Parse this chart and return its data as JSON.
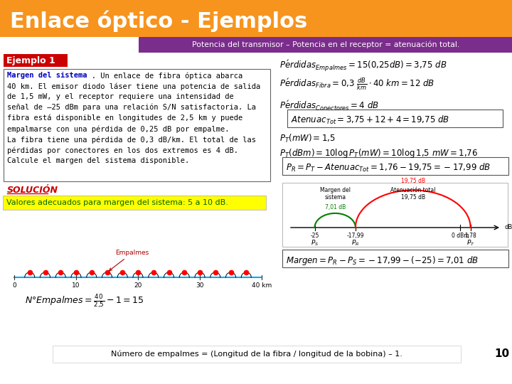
{
  "title": "Enlace óptico - Ejemplos",
  "title_bg": "#F7941D",
  "title_color": "#FFFFFF",
  "subtitle": "Potencia del transmisor – Potencia en el receptor = atenuación total.",
  "subtitle_bg": "#7B2D8B",
  "subtitle_color": "#FFFFFF",
  "ejemplo_label": "Ejemplo 1",
  "ejemplo_bg": "#CC0000",
  "ejemplo_color": "#FFFFFF",
  "problem_title_bold": "Margen del sistema",
  "problem_text": ". Un enlace de fibra óptica abarca\n40 km. El emisor diodo láser tiene una potencia de salida\nde 1,5 mW, y el receptor requiere una intensidad de\nseñal de –25 dBm para una relación S/N satisfactoria. La\nfibra está disponible en longitudes de 2,5 km y puede\nempalmarse con una pérdida de 0,25 dB por empalme.\nLa fibra tiene una pérdida de 0,3 dB/km. El total de las\npérdidas por conectores en los dos extremos es 4 dB.\nCalcule el margen del sistema disponible.",
  "solucion_label": "SOLUCIÓN",
  "solucion_color": "#CC0000",
  "yellow_box_text": "Valores adecuados para margen del sistema: 5 a 10 dB.",
  "yellow_box_bg": "#FFFF00",
  "bottom_text": "Número de empalmes = (Longitud de la fibra / longitud de la bobina) – 1.",
  "page_number": "10",
  "bg_color": "#FFFFFF",
  "orange_color": "#F7941D",
  "purple_color": "#7B2D8B",
  "red_color": "#CC0000",
  "green_color": "#228B22",
  "formula_box_edge": "#555555"
}
